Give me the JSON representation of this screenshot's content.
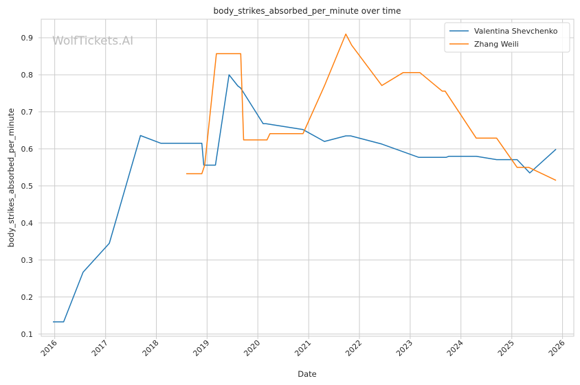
{
  "chart_data": {
    "type": "line",
    "title": "body_strikes_absorbed_per_minute over time",
    "xlabel": "Date",
    "ylabel": "body_strikes_absorbed_per_minute",
    "watermark": "WolfTickets.AI",
    "x_ticks": [
      "2016",
      "2017",
      "2018",
      "2019",
      "2020",
      "2021",
      "2022",
      "2023",
      "2024",
      "2025",
      "2026"
    ],
    "y_ticks": [
      "0.1",
      "0.2",
      "0.3",
      "0.4",
      "0.5",
      "0.6",
      "0.7",
      "0.8",
      "0.9"
    ],
    "xlim": [
      "2015-09-26",
      "2026-03-23"
    ],
    "ylim": [
      0.094,
      0.95
    ],
    "grid": true,
    "legend_position": "top-right",
    "series": [
      {
        "name": "Valentina Shevchenko",
        "color": "#1f77b4",
        "points": [
          [
            "2015-12-19",
            0.133
          ],
          [
            "2016-03-05",
            0.133
          ],
          [
            "2016-07-23",
            0.267
          ],
          [
            "2017-01-28",
            0.345
          ],
          [
            "2017-09-09",
            0.636
          ],
          [
            "2018-02-03",
            0.615
          ],
          [
            "2018-11-24",
            0.615
          ],
          [
            "2018-12-08",
            0.556
          ],
          [
            "2019-03-02",
            0.556
          ],
          [
            "2019-06-08",
            0.8
          ],
          [
            "2019-08-10",
            0.77
          ],
          [
            "2019-08-31",
            0.764
          ],
          [
            "2020-02-08",
            0.668
          ],
          [
            "2020-02-29",
            0.668
          ],
          [
            "2020-11-21",
            0.652
          ],
          [
            "2021-04-24",
            0.62
          ],
          [
            "2021-09-25",
            0.635
          ],
          [
            "2021-10-30",
            0.635
          ],
          [
            "2022-06-11",
            0.613
          ],
          [
            "2023-03-04",
            0.577
          ],
          [
            "2023-09-16",
            0.577
          ],
          [
            "2023-10-07",
            0.58
          ],
          [
            "2024-04-20",
            0.58
          ],
          [
            "2024-09-14",
            0.571
          ],
          [
            "2025-02-08",
            0.571
          ],
          [
            "2025-05-10",
            0.535
          ],
          [
            "2025-11-15",
            0.599
          ]
        ]
      },
      {
        "name": "Zhang Weili",
        "color": "#ff7f0e",
        "points": [
          [
            "2018-08-04",
            0.533
          ],
          [
            "2018-11-24",
            0.533
          ],
          [
            "2018-12-15",
            0.556
          ],
          [
            "2019-03-09",
            0.857
          ],
          [
            "2019-08-31",
            0.857
          ],
          [
            "2019-09-21",
            0.624
          ],
          [
            "2020-03-07",
            0.624
          ],
          [
            "2020-03-28",
            0.641
          ],
          [
            "2020-11-21",
            0.641
          ],
          [
            "2021-04-24",
            0.77
          ],
          [
            "2021-09-25",
            0.91
          ],
          [
            "2021-11-06",
            0.88
          ],
          [
            "2022-06-11",
            0.771
          ],
          [
            "2022-11-12",
            0.806
          ],
          [
            "2023-03-11",
            0.806
          ],
          [
            "2023-08-19",
            0.756
          ],
          [
            "2023-09-09",
            0.756
          ],
          [
            "2024-04-20",
            0.629
          ],
          [
            "2024-09-14",
            0.629
          ],
          [
            "2025-02-08",
            0.55
          ],
          [
            "2025-05-03",
            0.55
          ],
          [
            "2025-11-15",
            0.515
          ]
        ]
      }
    ]
  }
}
